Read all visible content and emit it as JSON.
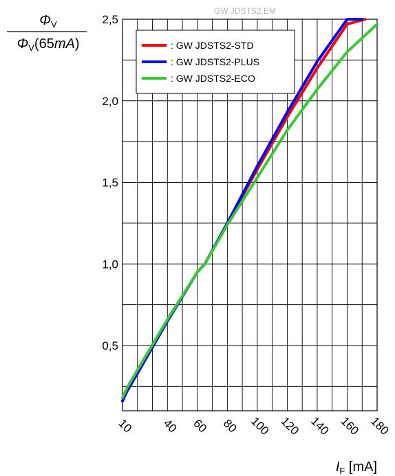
{
  "watermark": "GW JDSTS2.EM",
  "chart_data": {
    "type": "line",
    "y_label": {
      "numerator_symbol": "Φ",
      "numerator_subscript": "V",
      "denominator_symbol": "Φ",
      "denominator_subscript": "V",
      "denominator_paren": "(65",
      "denominator_unit": "mA",
      "denominator_close": ")"
    },
    "x_label": {
      "symbol": "I",
      "subscript": "F",
      "unit": " [mA]"
    },
    "xlim": [
      10,
      180
    ],
    "ylim": [
      0.1,
      2.5
    ],
    "x_ticks": [
      10,
      40,
      60,
      80,
      100,
      120,
      140,
      160,
      180
    ],
    "x_tick_labels": [
      "10",
      "40",
      "60",
      "80",
      "100",
      "120",
      "140",
      "160",
      "180"
    ],
    "y_ticks": [
      0.5,
      1.0,
      1.5,
      2.0,
      2.5
    ],
    "y_tick_labels": [
      "0,5",
      "1,0",
      "1,5",
      "2,0",
      "2,5"
    ],
    "grid": true,
    "legend_position": "top-left",
    "series": [
      {
        "name": ": GW JDSTS2-STD",
        "color": "#ff0000",
        "x": [
          10,
          13,
          20,
          40,
          60,
          65,
          80,
          100,
          120,
          140,
          160,
          172
        ],
        "y": [
          0.16,
          0.22,
          0.33,
          0.65,
          0.95,
          1.0,
          1.25,
          1.58,
          1.9,
          2.2,
          2.47,
          2.5
        ]
      },
      {
        "name": ": GW JDSTS2-PLUS",
        "color": "#0000ff",
        "x": [
          10,
          13,
          20,
          40,
          60,
          65,
          80,
          100,
          120,
          140,
          160,
          170
        ],
        "y": [
          0.16,
          0.22,
          0.33,
          0.65,
          0.95,
          1.0,
          1.25,
          1.6,
          1.93,
          2.24,
          2.5,
          2.5
        ]
      },
      {
        "name": ": GW JDSTS2-ECO",
        "color": "#33cc33",
        "x": [
          10,
          13,
          20,
          40,
          60,
          65,
          80,
          100,
          120,
          140,
          160,
          180
        ],
        "y": [
          0.18,
          0.24,
          0.35,
          0.66,
          0.95,
          1.0,
          1.24,
          1.53,
          1.82,
          2.07,
          2.3,
          2.47
        ]
      }
    ]
  }
}
